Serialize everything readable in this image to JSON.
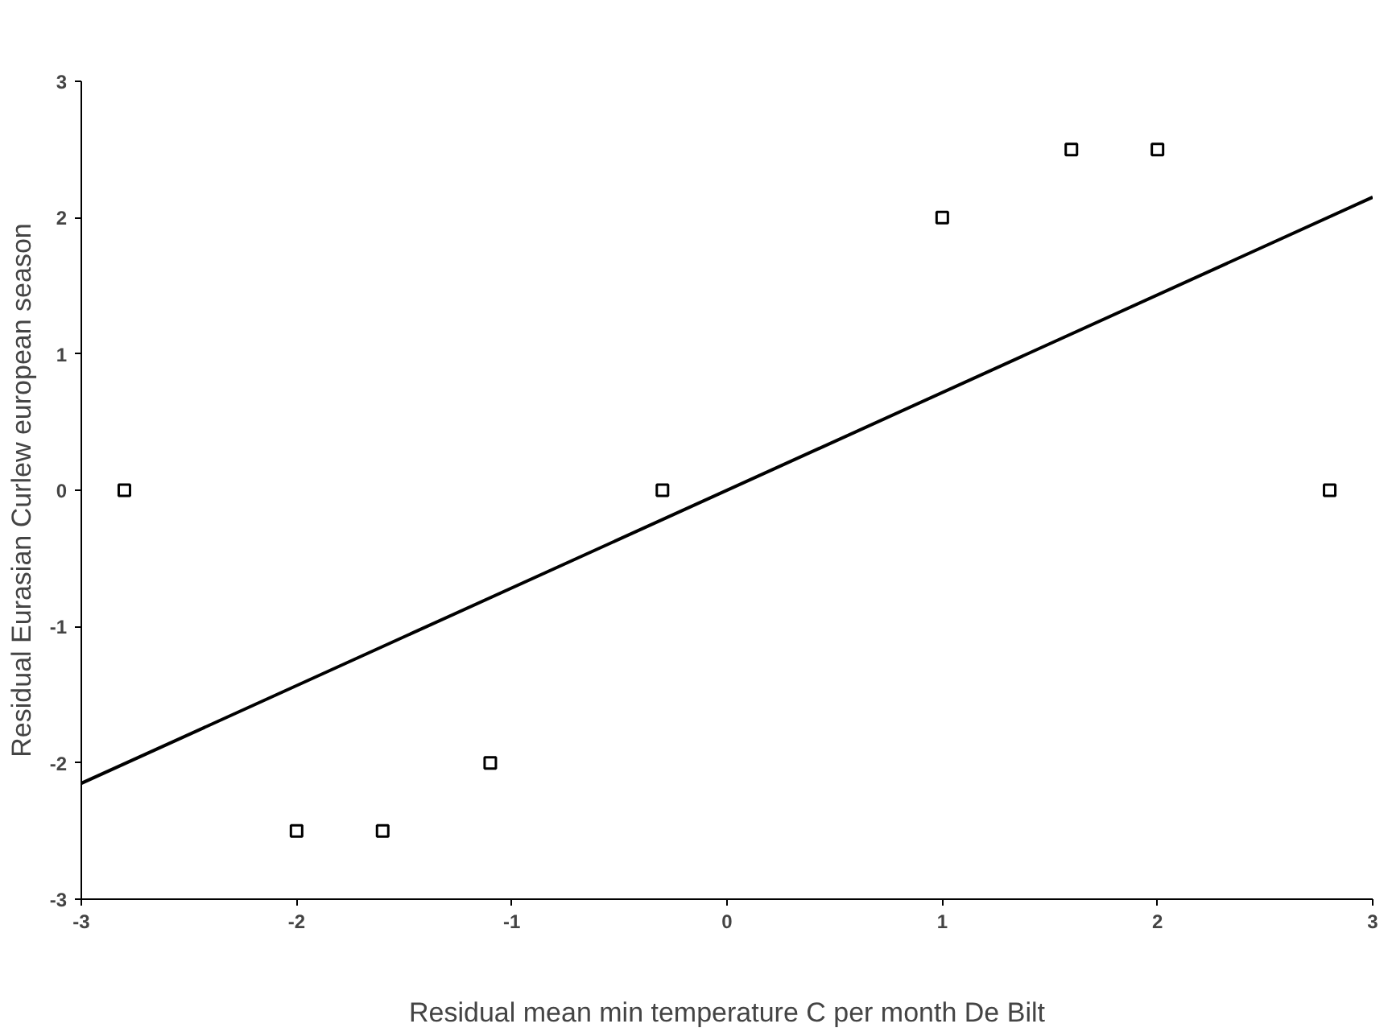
{
  "chart_data": {
    "type": "scatter",
    "xlabel": "Residual mean min temperature C per month De Bilt",
    "ylabel": "Residual Eurasian Curlew european season",
    "xlim": [
      -3,
      3
    ],
    "ylim": [
      -3,
      3
    ],
    "xticks": [
      -3,
      -2,
      -1,
      0,
      1,
      2,
      3
    ],
    "yticks": [
      -3,
      -2,
      -1,
      0,
      1,
      2,
      3
    ],
    "grid": false,
    "series": [
      {
        "marker": "square",
        "color": "#000000",
        "x": [
          -2.8,
          -2.0,
          -1.6,
          -1.1,
          -0.3,
          1.0,
          1.6,
          2.0,
          2.8
        ],
        "values": [
          0,
          -2.5,
          -2.5,
          -2.0,
          0,
          2.0,
          2.5,
          2.5,
          0
        ]
      },
      {
        "type": "line",
        "line_style": "solid",
        "marker": "none",
        "color": "#000000",
        "x": [
          -3,
          3
        ],
        "values": [
          -2.15,
          2.15
        ]
      }
    ]
  }
}
